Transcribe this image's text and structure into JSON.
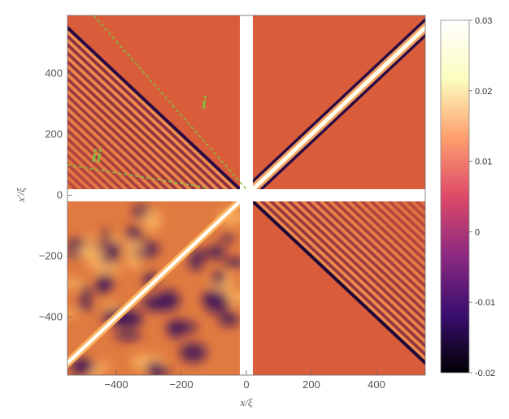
{
  "chart_data": {
    "type": "heatmap",
    "xlabel": "x/ξ",
    "ylabel": "x'/ξ",
    "xlim": [
      -550,
      550
    ],
    "ylim": [
      -590,
      590
    ],
    "xticks": [
      -400,
      -200,
      0,
      200,
      400
    ],
    "yticks": [
      -400,
      -200,
      0,
      200,
      400
    ],
    "xtick_labels": [
      "−400",
      "−200",
      "0",
      "200",
      "400"
    ],
    "ytick_labels": [
      "−400",
      "−200",
      "0",
      "200",
      "400"
    ],
    "gap_halfwidth": 20,
    "colorbar": {
      "range": [
        -0.02,
        0.03
      ],
      "ticks": [
        0.03,
        0.02,
        0.01,
        0,
        -0.01,
        -0.02
      ],
      "tick_labels": [
        "0.03",
        "0.02",
        "0.01",
        "0",
        "-0.01",
        "-0.02"
      ],
      "colormap": "inferno",
      "stops": [
        "#000004",
        "#3b0f70",
        "#8c2981",
        "#de4968",
        "#fe9f6d",
        "#fcfdbf",
        "#ffffff"
      ]
    },
    "annotations": [
      {
        "label": "i",
        "color": "#7fbf3f",
        "line_from": [
          -470,
          590
        ],
        "line_to": [
          0,
          20
        ],
        "label_at": [
          -130,
          285
        ]
      },
      {
        "label": "ii",
        "color": "#7fbf3f",
        "line_from": [
          -550,
          100
        ],
        "line_to": [
          -120,
          25
        ],
        "label_at": [
          -460,
          110
        ]
      }
    ],
    "background_value": 0.0,
    "colors": {
      "background": "#d95d3a",
      "annotation": "#7fbf3f"
    }
  }
}
